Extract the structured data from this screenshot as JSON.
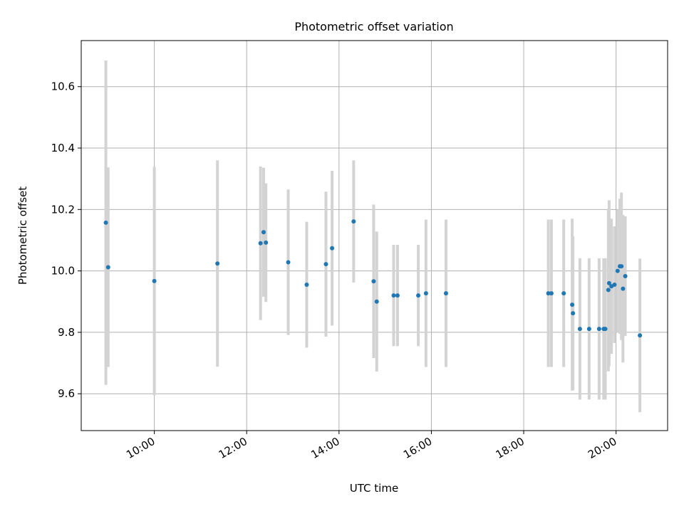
{
  "chart_data": {
    "type": "scatter",
    "title": "Photometric offset variation",
    "xlabel": "UTC time",
    "ylabel": "Photometric offset",
    "x_tick_labels": [
      "10:00",
      "12:00",
      "14:00",
      "16:00",
      "18:00",
      "20:00"
    ],
    "x_tick_hours": [
      10,
      12,
      14,
      16,
      18,
      20
    ],
    "y_ticks": [
      9.6,
      9.8,
      10.0,
      10.2,
      10.4,
      10.6
    ],
    "y_tick_labels": [
      "9.6",
      "9.8",
      "10.0",
      "10.2",
      "10.4",
      "10.6"
    ],
    "xlim": [
      "08:25",
      "21:07"
    ],
    "ylim": [
      9.48,
      10.75
    ],
    "grid": true,
    "colors": {
      "point": "#1f77b4",
      "errorbar": "#d3d3d3",
      "grid": "#b0b0b0"
    },
    "points": [
      {
        "time": "08:57",
        "value": 10.157,
        "err": 0.528
      },
      {
        "time": "09:00",
        "value": 10.012,
        "err": 0.325
      },
      {
        "time": "10:00",
        "value": 9.967,
        "err": 0.372
      },
      {
        "time": "11:22",
        "value": 10.024,
        "err": 0.336
      },
      {
        "time": "12:18",
        "value": 10.09,
        "err": 0.25
      },
      {
        "time": "12:22",
        "value": 10.126,
        "err": 0.21
      },
      {
        "time": "12:25",
        "value": 10.092,
        "err": 0.193
      },
      {
        "time": "12:54",
        "value": 10.028,
        "err": 0.237
      },
      {
        "time": "13:18",
        "value": 9.955,
        "err": 0.205
      },
      {
        "time": "13:43",
        "value": 10.022,
        "err": 0.236
      },
      {
        "time": "13:51",
        "value": 10.074,
        "err": 0.252
      },
      {
        "time": "14:19",
        "value": 10.161,
        "err": 0.199
      },
      {
        "time": "14:45",
        "value": 9.966,
        "err": 0.25
      },
      {
        "time": "14:49",
        "value": 9.9,
        "err": 0.228
      },
      {
        "time": "15:11",
        "value": 9.92,
        "err": 0.165
      },
      {
        "time": "15:16",
        "value": 9.92,
        "err": 0.165
      },
      {
        "time": "15:43",
        "value": 9.92,
        "err": 0.165
      },
      {
        "time": "15:53",
        "value": 9.927,
        "err": 0.24
      },
      {
        "time": "16:19",
        "value": 9.927,
        "err": 0.24
      },
      {
        "time": "18:32",
        "value": 9.927,
        "err": 0.24
      },
      {
        "time": "18:36",
        "value": 9.927,
        "err": 0.24
      },
      {
        "time": "18:52",
        "value": 9.927,
        "err": 0.24
      },
      {
        "time": "19:03",
        "value": 9.89,
        "err": 0.28
      },
      {
        "time": "19:04",
        "value": 9.862,
        "err": 0.25
      },
      {
        "time": "19:13",
        "value": 9.811,
        "err": 0.23
      },
      {
        "time": "19:25",
        "value": 9.811,
        "err": 0.23
      },
      {
        "time": "19:38",
        "value": 9.811,
        "err": 0.23
      },
      {
        "time": "19:44",
        "value": 9.811,
        "err": 0.23
      },
      {
        "time": "19:46",
        "value": 9.811,
        "err": 0.23
      },
      {
        "time": "19:50",
        "value": 9.938,
        "err": 0.265
      },
      {
        "time": "19:51",
        "value": 9.96,
        "err": 0.27
      },
      {
        "time": "19:54",
        "value": 9.95,
        "err": 0.22
      },
      {
        "time": "19:58",
        "value": 9.955,
        "err": 0.19
      },
      {
        "time": "20:02",
        "value": 10.0,
        "err": 0.2
      },
      {
        "time": "20:05",
        "value": 10.015,
        "err": 0.22
      },
      {
        "time": "20:07",
        "value": 10.015,
        "err": 0.24
      },
      {
        "time": "20:09",
        "value": 9.942,
        "err": 0.24
      },
      {
        "time": "20:12",
        "value": 9.983,
        "err": 0.195
      },
      {
        "time": "20:31",
        "value": 9.79,
        "err": 0.25
      }
    ]
  }
}
